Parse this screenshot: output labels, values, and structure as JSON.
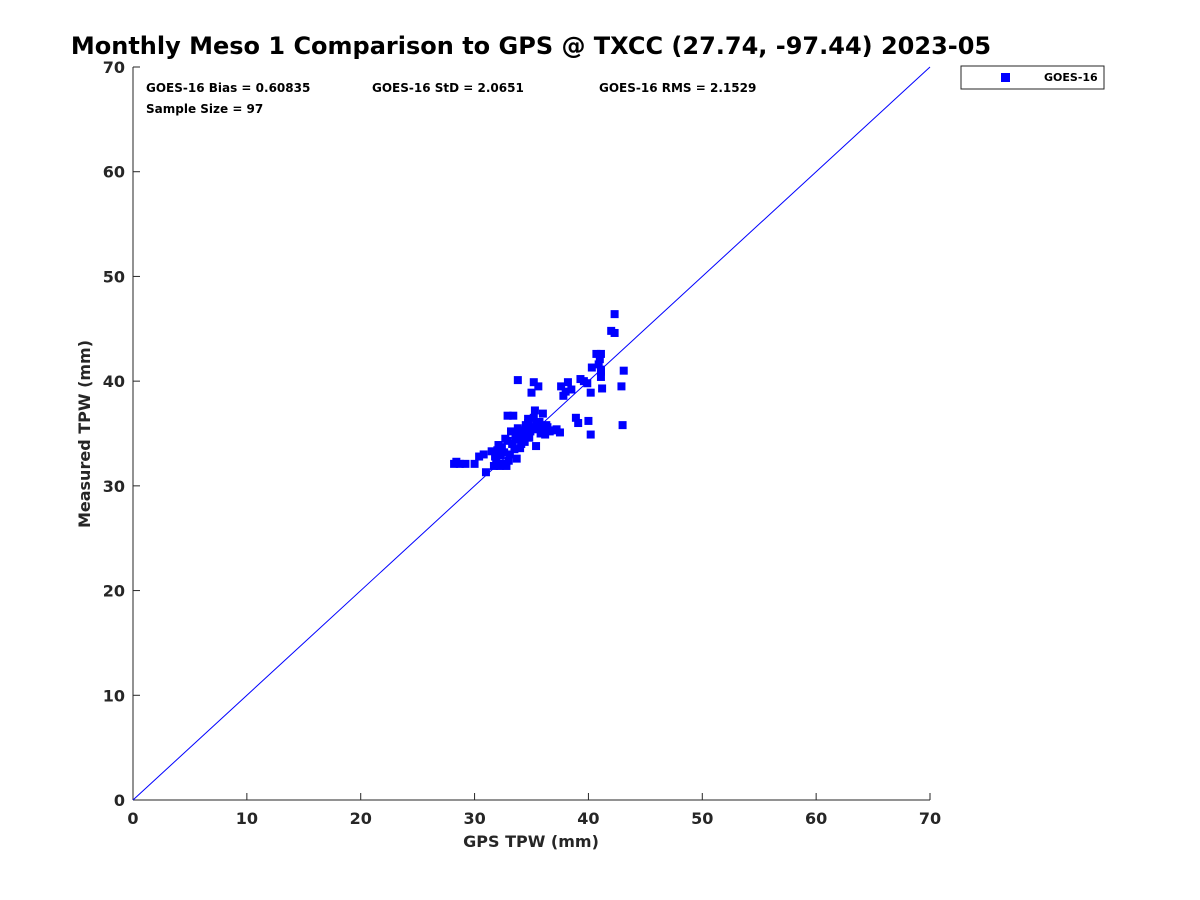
{
  "chart_data": {
    "type": "scatter",
    "title": "Monthly Meso 1 Comparison to GPS @ TXCC (27.74, -97.44) 2023-05",
    "xlabel": "GPS TPW (mm)",
    "ylabel": "Measured TPW (mm)",
    "xlim": [
      0,
      70
    ],
    "ylim": [
      0,
      70
    ],
    "xticks": [
      "0",
      "10",
      "20",
      "30",
      "40",
      "50",
      "60",
      "70"
    ],
    "yticks": [
      "0",
      "10",
      "20",
      "30",
      "40",
      "50",
      "60",
      "70"
    ],
    "grid": false,
    "legend": {
      "position": "outside-top-right",
      "entries": [
        "GOES-16"
      ]
    },
    "reference_line": {
      "label": "1:1",
      "from": [
        0,
        0
      ],
      "to": [
        70,
        70
      ],
      "color": "#0000ff"
    },
    "stats": {
      "bias": "GOES-16 Bias = 0.60835",
      "std": "GOES-16 StD = 2.0651",
      "rms": "GOES-16 RMS = 2.1529",
      "sample": "Sample Size = 97"
    },
    "series": [
      {
        "name": "GOES-16",
        "color": "#0000ff",
        "marker": "square",
        "points": [
          [
            28.2,
            32.1
          ],
          [
            28.4,
            32.3
          ],
          [
            28.7,
            32.1
          ],
          [
            29.2,
            32.1
          ],
          [
            30.0,
            32.1
          ],
          [
            30.4,
            32.8
          ],
          [
            30.8,
            33.0
          ],
          [
            31.0,
            31.3
          ],
          [
            31.5,
            33.3
          ],
          [
            31.7,
            31.9
          ],
          [
            31.9,
            32.5
          ],
          [
            32.0,
            33.4
          ],
          [
            32.1,
            33.9
          ],
          [
            32.2,
            31.9
          ],
          [
            32.3,
            32.9
          ],
          [
            32.5,
            32.1
          ],
          [
            32.6,
            33.2
          ],
          [
            32.7,
            34.5
          ],
          [
            32.8,
            31.9
          ],
          [
            32.9,
            36.7
          ],
          [
            33.0,
            32.4
          ],
          [
            33.1,
            33.0
          ],
          [
            33.2,
            35.2
          ],
          [
            33.3,
            34.0
          ],
          [
            33.4,
            36.7
          ],
          [
            33.5,
            33.5
          ],
          [
            33.6,
            34.4
          ],
          [
            33.7,
            32.6
          ],
          [
            33.8,
            40.1
          ],
          [
            33.9,
            35.1
          ],
          [
            34.0,
            33.6
          ],
          [
            34.1,
            34.0
          ],
          [
            34.2,
            34.6
          ],
          [
            34.3,
            35.3
          ],
          [
            34.4,
            34.2
          ],
          [
            34.5,
            35.8
          ],
          [
            34.6,
            34.8
          ],
          [
            34.7,
            36.0
          ],
          [
            34.8,
            34.6
          ],
          [
            34.9,
            35.2
          ],
          [
            35.0,
            38.9
          ],
          [
            35.1,
            35.6
          ],
          [
            35.2,
            36.5
          ],
          [
            35.3,
            37.2
          ],
          [
            35.2,
            39.9
          ],
          [
            35.4,
            33.8
          ],
          [
            35.5,
            35.4
          ],
          [
            35.6,
            39.5
          ],
          [
            35.7,
            36.1
          ],
          [
            35.8,
            35.0
          ],
          [
            35.9,
            35.7
          ],
          [
            36.0,
            36.9
          ],
          [
            36.1,
            35.2
          ],
          [
            36.2,
            34.9
          ],
          [
            36.4,
            35.6
          ],
          [
            36.6,
            35.2
          ],
          [
            36.9,
            35.3
          ],
          [
            37.2,
            35.4
          ],
          [
            37.5,
            35.1
          ],
          [
            37.6,
            39.5
          ],
          [
            37.8,
            38.6
          ],
          [
            38.0,
            39.0
          ],
          [
            38.2,
            39.9
          ],
          [
            38.5,
            39.2
          ],
          [
            38.9,
            36.5
          ],
          [
            39.1,
            36.0
          ],
          [
            39.3,
            40.2
          ],
          [
            39.6,
            40.0
          ],
          [
            39.9,
            39.8
          ],
          [
            40.0,
            36.2
          ],
          [
            40.2,
            38.9
          ],
          [
            40.2,
            34.9
          ],
          [
            40.3,
            41.3
          ],
          [
            40.7,
            42.6
          ],
          [
            40.9,
            41.6
          ],
          [
            41.0,
            42.1
          ],
          [
            41.1,
            40.4
          ],
          [
            41.1,
            40.9
          ],
          [
            41.1,
            42.6
          ],
          [
            41.2,
            39.3
          ],
          [
            41.1,
            41.1
          ],
          [
            42.0,
            44.8
          ],
          [
            42.3,
            44.6
          ],
          [
            42.3,
            46.4
          ],
          [
            42.9,
            39.5
          ],
          [
            43.0,
            35.8
          ],
          [
            43.1,
            41.0
          ],
          [
            32.4,
            33.7
          ],
          [
            33.6,
            34.9
          ],
          [
            34.2,
            35.0
          ],
          [
            34.7,
            36.4
          ],
          [
            35.4,
            35.9
          ],
          [
            31.8,
            32.8
          ],
          [
            32.9,
            34.3
          ],
          [
            36.3,
            35.8
          ],
          [
            33.8,
            35.5
          ],
          [
            34.9,
            35.5
          ]
        ]
      }
    ]
  }
}
